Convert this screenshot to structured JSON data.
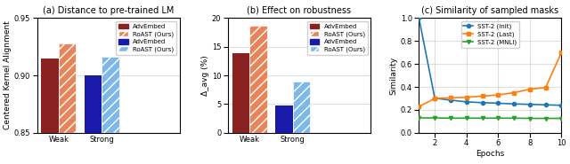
{
  "chart_data": [
    {
      "type": "bar",
      "title": "(a) Distance to pre-trained LM",
      "ylabel": "Centered Kernel Alignment",
      "categories": [
        "Weak",
        "Strong"
      ],
      "series": [
        {
          "name": "AdvEmbed",
          "colors": [
            "#8B2222",
            "#1a1aaa"
          ],
          "values": [
            0.915,
            0.9
          ]
        },
        {
          "name": "RoAST (Ours)",
          "colors": [
            "#E8845A",
            "#7EB8E8"
          ],
          "values": [
            0.928,
            0.916
          ]
        }
      ],
      "ylim": [
        0.85,
        0.95
      ],
      "yticks": [
        0.85,
        {
          "value": 0.9,
          "label": "0.90"
        },
        0.95
      ],
      "grid": "y",
      "legend": "upper right"
    },
    {
      "type": "bar",
      "title": "(b) Effect on robustness",
      "ylabel": "Δ_avg (%)",
      "categories": [
        "Weak",
        "Strong"
      ],
      "series": [
        {
          "name": "AdvEmbed",
          "colors": [
            "#8B2222",
            "#1a1aaa"
          ],
          "values": [
            13.8,
            4.7
          ]
        },
        {
          "name": "RoAST (Ours)",
          "colors": [
            "#E8845A",
            "#7EB8E8"
          ],
          "values": [
            18.6,
            9.0
          ]
        }
      ],
      "ylim": [
        0,
        20
      ],
      "yticks": [
        0,
        5,
        10,
        15,
        20
      ],
      "grid": "y",
      "legend": "upper right"
    },
    {
      "type": "line",
      "title": "(c) Similarity of sampled masks",
      "xlabel": "Epochs",
      "ylabel": "Similarity",
      "x": [
        1,
        2,
        3,
        4,
        5,
        6,
        7,
        8,
        9,
        10
      ],
      "series": [
        {
          "name": "SST-2 (Init)",
          "marker": "circle",
          "values": [
            1.0,
            0.302,
            0.285,
            0.27,
            0.263,
            0.258,
            0.252,
            0.248,
            0.244,
            0.24
          ]
        },
        {
          "name": "SST-2 (Last)",
          "marker": "square",
          "values": [
            0.228,
            0.3,
            0.305,
            0.31,
            0.32,
            0.33,
            0.35,
            0.38,
            0.395,
            0.7
          ]
        },
        {
          "name": "SST-2 (MNLI)",
          "marker": "triangle_down",
          "values": [
            0.13,
            0.13,
            0.128,
            0.128,
            0.128,
            0.128,
            0.128,
            0.126,
            0.126,
            0.126
          ]
        }
      ],
      "xlim": [
        1,
        10
      ],
      "xticks": [
        2,
        4,
        6,
        8,
        10
      ],
      "ylim": [
        0.0,
        1.0
      ],
      "yticks": [
        0.0,
        0.2,
        0.4,
        0.6,
        0.8,
        1.0
      ],
      "grid": true,
      "legend": "upper center"
    }
  ]
}
